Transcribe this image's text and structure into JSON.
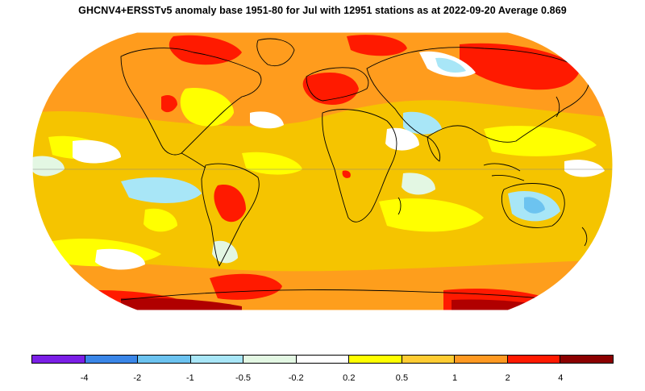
{
  "title": "GHCNV4+ERSSTv5 anomaly base 1951-80 for Jul with 12951 stations as at 2022-09-20 Average 0.869",
  "legend": {
    "colors": [
      "#7b1fe6",
      "#3a86e8",
      "#6cc3f0",
      "#a8e6f7",
      "#e3f7e3",
      "#ffffff",
      "#ffff00",
      "#ffcc33",
      "#ff9922",
      "#ff1a00",
      "#8b0000"
    ],
    "labels": [
      "-4",
      "-2",
      "-1",
      "-0.5",
      "-0.2",
      "0.2",
      "0.5",
      "1",
      "2",
      "4"
    ]
  },
  "map": {
    "projection": "robinson-like",
    "ocean_base_color": "#f5c400"
  }
}
